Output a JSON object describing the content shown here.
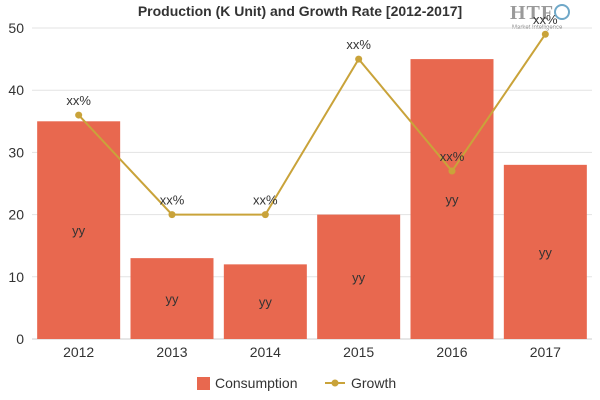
{
  "logo": {
    "mark": "HTF",
    "subtitle": "Market Intelligence"
  },
  "chart_data": {
    "type": "bar",
    "title": "Production (K Unit) and Growth Rate [2012-2017]",
    "categories": [
      "2012",
      "2013",
      "2014",
      "2015",
      "2016",
      "2017"
    ],
    "ylim": [
      0,
      50
    ],
    "yticks": [
      0,
      10,
      20,
      30,
      40,
      50
    ],
    "grid": true,
    "legend_position": "bottom",
    "series": [
      {
        "name": "Consumption",
        "type": "bar",
        "color": "#e8684f",
        "values": [
          35,
          13,
          12,
          20,
          45,
          28
        ],
        "labels": [
          "yy",
          "yy",
          "yy",
          "yy",
          "yy",
          "yy"
        ]
      },
      {
        "name": "Growth",
        "type": "line",
        "color": "#c9a33a",
        "values": [
          36,
          20,
          20,
          45,
          27,
          49
        ],
        "labels": [
          "xx%",
          "xx%",
          "xx%",
          "xx%",
          "xx%",
          "xx%"
        ]
      }
    ]
  }
}
